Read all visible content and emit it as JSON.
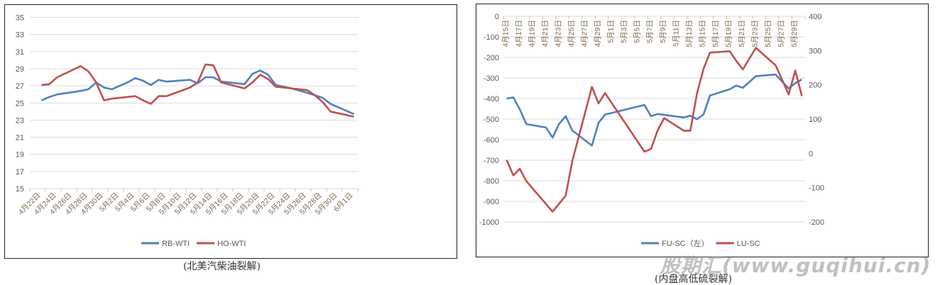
{
  "chart_data": [
    {
      "type": "line",
      "caption": "(北美汽柴油裂解)",
      "y_axis": {
        "min": 15,
        "max": 35,
        "step": 2
      },
      "x_tick_labels": [
        "4月22日",
        "4月24日",
        "4月26日",
        "4月28日",
        "4月30日",
        "5月2日",
        "5月4日",
        "5月6日",
        "5月8日",
        "5月10日",
        "5月12日",
        "5月14日",
        "5月16日",
        "5月18日",
        "5月20日",
        "5月22日",
        "5月24日",
        "5月26日",
        "5月28日",
        "5月30日",
        "6月1日"
      ],
      "grid": true,
      "legend": "bottom",
      "x": [
        "4/23",
        "4/24",
        "4/25",
        "4/28",
        "4/29",
        "4/30",
        "5/1",
        "5/2",
        "5/4",
        "5/5",
        "5/6",
        "5/7",
        "5/8",
        "5/9",
        "5/12",
        "5/13",
        "5/14",
        "5/15",
        "5/16",
        "5/19",
        "5/20",
        "5/21",
        "5/22",
        "5/23",
        "5/25",
        "5/27",
        "5/28",
        "5/29",
        "5/30",
        "5/31",
        "6/2"
      ],
      "series": [
        {
          "name": "RB-WTI",
          "color": "#4f81bd",
          "values": [
            25.3,
            25.7,
            26.0,
            26.4,
            26.6,
            27.4,
            26.8,
            26.6,
            27.4,
            27.9,
            27.6,
            27.1,
            27.7,
            27.5,
            27.7,
            27.3,
            28.0,
            28.0,
            27.5,
            27.2,
            28.4,
            28.8,
            28.3,
            27.1,
            26.7,
            26.2,
            25.9,
            25.6,
            24.9,
            24.5,
            23.7
          ]
        },
        {
          "name": "HO-WTI",
          "color": "#c0504d",
          "values": [
            27.1,
            27.2,
            28.0,
            29.3,
            28.7,
            27.4,
            25.3,
            25.5,
            null,
            25.8,
            25.3,
            24.9,
            25.8,
            25.8,
            26.8,
            27.4,
            29.5,
            29.4,
            27.4,
            26.7,
            27.4,
            28.3,
            27.8,
            26.9,
            26.7,
            26.5,
            25.9,
            25.1,
            24.0,
            23.8,
            23.4
          ]
        }
      ]
    },
    {
      "type": "line",
      "caption": "(内盘高低硫裂解)",
      "y_axis_left": {
        "min": -1000,
        "max": 0,
        "step": 100
      },
      "y_axis_right": {
        "min": -200,
        "max": 400,
        "step": 100
      },
      "x_tick_labels": [
        "4月15日",
        "4月17日",
        "4月19日",
        "4月21日",
        "4月23日",
        "4月25日",
        "4月27日",
        "4月29日",
        "5月1日",
        "5月3日",
        "5月5日",
        "5月7日",
        "5月9日",
        "5月11日",
        "5月13日",
        "5月15日",
        "5月17日",
        "5月19日",
        "5月21日",
        "5月23日",
        "5月25日",
        "5月27日",
        "5月29日"
      ],
      "grid": true,
      "legend": "bottom",
      "x": [
        "4/15",
        "4/16",
        "4/17",
        "4/18",
        "4/21",
        "4/22",
        "4/23",
        "4/24",
        "4/25",
        "4/28",
        "4/29",
        "4/30",
        "5/6",
        "5/7",
        "5/8",
        "5/9",
        "5/12",
        "5/13",
        "5/14",
        "5/15",
        "5/16",
        "5/19",
        "5/20",
        "5/21",
        "5/23",
        "5/26",
        "5/28",
        "5/29",
        "5/30"
      ],
      "series": [
        {
          "name": "FU-SC（左）",
          "axis": "left",
          "color": "#4f81bd",
          "values": [
            -400,
            -394,
            -452,
            -524,
            -541,
            -590,
            -523,
            -486,
            -555,
            -629,
            -518,
            -478,
            -431,
            -486,
            -475,
            null,
            -492,
            -483,
            -501,
            -478,
            -385,
            -355,
            -337,
            -348,
            -291,
            -283,
            -351,
            -325,
            -307
          ]
        },
        {
          "name": "LU-SC",
          "axis": "right",
          "color": "#c0504d",
          "values": [
            -19,
            -64,
            -45,
            -81,
            null,
            -170,
            -147,
            -123,
            -23,
            194,
            146,
            176,
            5,
            13,
            66,
            103,
            66,
            66,
            174,
            246,
            294,
            298,
            270,
            245,
            308,
            257,
            172,
            242,
            167
          ]
        }
      ]
    }
  ],
  "watermark": "股期汇(www.guqihui.cn)"
}
